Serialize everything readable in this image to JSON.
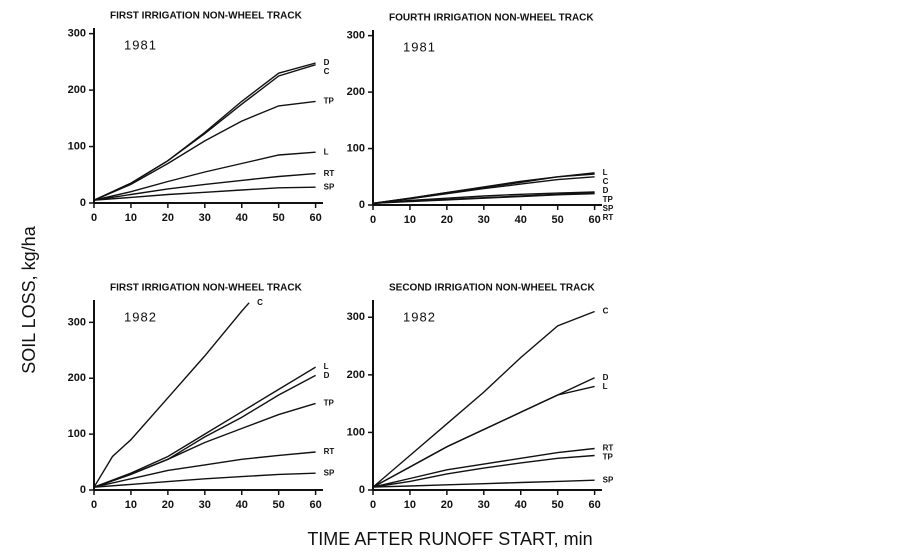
{
  "ylabel": "SOIL LOSS, kg/ha",
  "xlabel": "TIME AFTER RUNOFF START, min",
  "chart_data": [
    {
      "type": "line",
      "title": "FIRST IRRIGATION NON-WHEEL TRACK",
      "annotation": "1981",
      "color": "#111111",
      "xlim": [
        0,
        62
      ],
      "ylim": [
        0,
        310
      ],
      "xticks": [
        0,
        10,
        20,
        30,
        40,
        50,
        60
      ],
      "yticks": [
        0,
        100,
        200,
        300
      ],
      "series": [
        {
          "name": "D",
          "x": [
            0,
            10,
            20,
            30,
            40,
            50,
            60
          ],
          "values": [
            5,
            35,
            75,
            125,
            180,
            230,
            248
          ]
        },
        {
          "name": "C",
          "x": [
            0,
            10,
            20,
            30,
            40,
            50,
            60
          ],
          "values": [
            5,
            35,
            75,
            123,
            175,
            225,
            245
          ]
        },
        {
          "name": "TP",
          "x": [
            0,
            10,
            20,
            30,
            40,
            50,
            60
          ],
          "values": [
            5,
            33,
            70,
            110,
            145,
            172,
            180
          ]
        },
        {
          "name": "L",
          "x": [
            0,
            10,
            20,
            30,
            40,
            50,
            60
          ],
          "values": [
            5,
            20,
            38,
            55,
            70,
            85,
            90
          ]
        },
        {
          "name": "RT",
          "x": [
            0,
            10,
            20,
            30,
            40,
            50,
            60
          ],
          "values": [
            5,
            15,
            25,
            33,
            40,
            47,
            52
          ]
        },
        {
          "name": "SP",
          "x": [
            0,
            10,
            20,
            30,
            40,
            50,
            60
          ],
          "values": [
            5,
            10,
            15,
            19,
            23,
            27,
            28
          ]
        }
      ]
    },
    {
      "type": "line",
      "title": "FOURTH IRRIGATION NON-WHEEL TRACK",
      "annotation": "1981",
      "color": "#111111",
      "xlim": [
        0,
        62
      ],
      "ylim": [
        0,
        310
      ],
      "xticks": [
        0,
        10,
        20,
        30,
        40,
        50,
        60
      ],
      "yticks": [
        0,
        100,
        200,
        300
      ],
      "series": [
        {
          "name": "C",
          "x": [
            0,
            10,
            20,
            30,
            40,
            50,
            60
          ],
          "values": [
            3,
            12,
            22,
            32,
            42,
            50,
            55
          ]
        },
        {
          "name": "L",
          "x": [
            0,
            10,
            20,
            30,
            40,
            50,
            60
          ],
          "values": [
            3,
            12,
            22,
            31,
            40,
            50,
            57
          ]
        },
        {
          "name": "D",
          "x": [
            0,
            10,
            20,
            30,
            40,
            50,
            60
          ],
          "values": [
            3,
            11,
            20,
            29,
            37,
            45,
            50
          ]
        },
        {
          "name": "TP",
          "x": [
            0,
            10,
            20,
            30,
            40,
            50,
            60
          ],
          "values": [
            3,
            8,
            12,
            16,
            19,
            21,
            23
          ]
        },
        {
          "name": "SP",
          "x": [
            0,
            10,
            20,
            30,
            40,
            50,
            60
          ],
          "values": [
            3,
            7,
            10,
            13,
            16,
            19,
            22
          ]
        },
        {
          "name": "RT",
          "x": [
            0,
            10,
            20,
            30,
            40,
            50,
            60
          ],
          "values": [
            3,
            6,
            9,
            12,
            15,
            18,
            20
          ]
        }
      ]
    },
    {
      "type": "line",
      "title": "FIRST IRRIGATION NON-WHEEL TRACK",
      "annotation": "1982",
      "color": "#111111",
      "xlim": [
        0,
        62
      ],
      "ylim": [
        0,
        340
      ],
      "xticks": [
        0,
        10,
        20,
        30,
        40,
        50,
        60
      ],
      "yticks": [
        0,
        100,
        200,
        300
      ],
      "series": [
        {
          "name": "C",
          "x": [
            0,
            5,
            10,
            20,
            30,
            40,
            42
          ],
          "values": [
            5,
            60,
            90,
            165,
            240,
            320,
            335
          ]
        },
        {
          "name": "L",
          "x": [
            0,
            10,
            20,
            30,
            40,
            50,
            60
          ],
          "values": [
            5,
            30,
            60,
            100,
            140,
            180,
            220
          ]
        },
        {
          "name": "D",
          "x": [
            0,
            10,
            20,
            30,
            40,
            50,
            60
          ],
          "values": [
            5,
            28,
            55,
            95,
            130,
            170,
            205
          ]
        },
        {
          "name": "TP",
          "x": [
            0,
            10,
            20,
            30,
            40,
            50,
            60
          ],
          "values": [
            5,
            28,
            55,
            85,
            110,
            135,
            155
          ]
        },
        {
          "name": "RT",
          "x": [
            0,
            10,
            20,
            30,
            40,
            50,
            60
          ],
          "values": [
            5,
            20,
            35,
            45,
            55,
            62,
            68
          ]
        },
        {
          "name": "SP",
          "x": [
            0,
            10,
            20,
            30,
            40,
            50,
            60
          ],
          "values": [
            5,
            10,
            15,
            20,
            24,
            28,
            30
          ]
        }
      ]
    },
    {
      "type": "line",
      "title": "SECOND IRRIGATION NON-WHEEL TRACK",
      "annotation": "1982",
      "color": "#111111",
      "xlim": [
        0,
        62
      ],
      "ylim": [
        0,
        330
      ],
      "xticks": [
        0,
        10,
        20,
        30,
        40,
        50,
        60
      ],
      "yticks": [
        0,
        100,
        200,
        300
      ],
      "series": [
        {
          "name": "C",
          "x": [
            0,
            10,
            20,
            30,
            40,
            50,
            60
          ],
          "values": [
            5,
            60,
            115,
            170,
            230,
            285,
            310
          ]
        },
        {
          "name": "D",
          "x": [
            0,
            10,
            20,
            30,
            40,
            50,
            60
          ],
          "values": [
            5,
            40,
            75,
            105,
            135,
            165,
            195
          ]
        },
        {
          "name": "L",
          "x": [
            0,
            10,
            20,
            30,
            40,
            50,
            60
          ],
          "values": [
            5,
            40,
            75,
            105,
            135,
            165,
            180
          ]
        },
        {
          "name": "RT",
          "x": [
            0,
            10,
            20,
            30,
            40,
            50,
            60
          ],
          "values": [
            5,
            20,
            35,
            45,
            55,
            65,
            72
          ]
        },
        {
          "name": "TP",
          "x": [
            0,
            10,
            20,
            30,
            40,
            50,
            60
          ],
          "values": [
            5,
            15,
            28,
            38,
            47,
            55,
            60
          ]
        },
        {
          "name": "SP",
          "x": [
            0,
            10,
            20,
            30,
            40,
            50,
            60
          ],
          "values": [
            5,
            7,
            9,
            11,
            13,
            15,
            17
          ]
        }
      ]
    }
  ]
}
